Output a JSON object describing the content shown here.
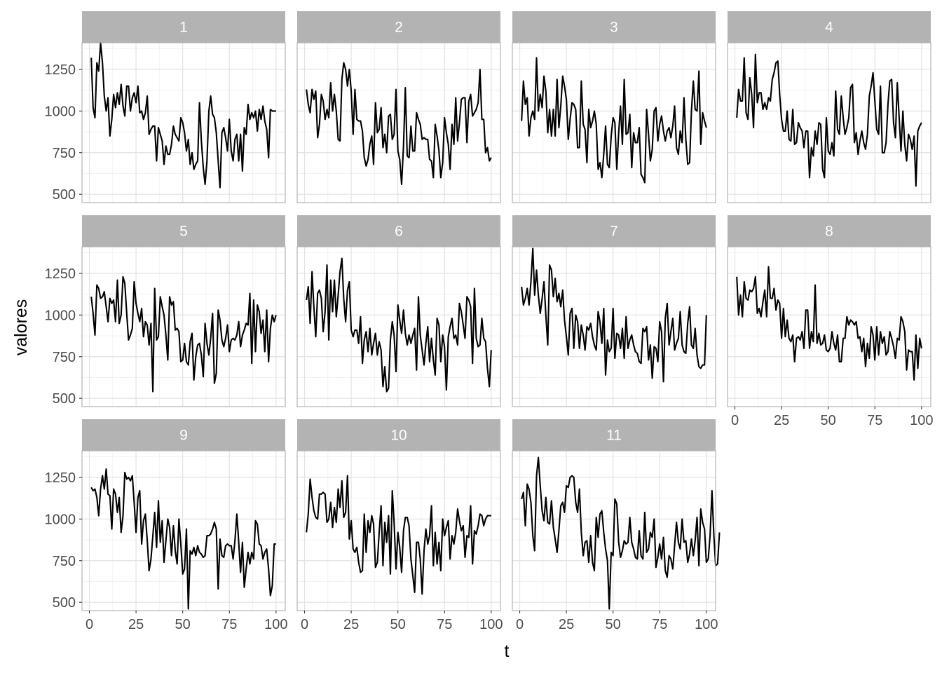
{
  "chart_data": {
    "type": "line",
    "layout": "facet_wrap",
    "ncol": 4,
    "xlabel": "t",
    "ylabel": "valores",
    "xlim": [
      1,
      100
    ],
    "ylim": [
      450,
      1410
    ],
    "x_ticks": [
      0,
      25,
      50,
      75,
      100
    ],
    "y_ticks": [
      500,
      750,
      1000,
      1250
    ],
    "x_tick_labels": [
      "0",
      "25",
      "50",
      "75",
      "100"
    ],
    "y_tick_labels": [
      "500",
      "750",
      "1000",
      "1250"
    ],
    "grid": true,
    "theme": "light",
    "colors": {
      "line": "#000000",
      "strip": "#b3b3b3",
      "strip_text": "#ffffff",
      "grid_major": "#e3e3e3",
      "grid_minor": "#f2f2f2",
      "border": "#b3b3b3"
    },
    "panels": [
      {
        "label": "1",
        "values": [
          1320,
          1020,
          960,
          1290,
          1240,
          1410,
          1290,
          1090,
          1000,
          1080,
          850,
          950,
          1100,
          1020,
          1110,
          1040,
          1160,
          1030,
          970,
          1150,
          1150,
          1000,
          1080,
          1110,
          1050,
          1150,
          990,
          1000,
          950,
          990,
          1090,
          860,
          890,
          910,
          910,
          700,
          900,
          860,
          820,
          680,
          790,
          740,
          740,
          800,
          910,
          860,
          840,
          820,
          960,
          930,
          870,
          760,
          830,
          680,
          750,
          650,
          680,
          700,
          1050,
          820,
          660,
          560,
          700,
          1000,
          1090,
          980,
          960,
          870,
          700,
          540,
          870,
          900,
          840,
          760,
          950,
          760,
          700,
          830,
          860,
          700,
          860,
          640,
          900,
          860,
          1040,
          950,
          990,
          960,
          1000,
          880,
          1010,
          950,
          1030,
          940,
          890,
          720,
          1010,
          1000,
          1000,
          1000
        ]
      },
      {
        "label": "2",
        "values": [
          1130,
          1040,
          990,
          1130,
          1070,
          1120,
          840,
          920,
          1100,
          1060,
          950,
          1010,
          960,
          1170,
          1000,
          1100,
          1000,
          830,
          820,
          1190,
          1290,
          1250,
          1150,
          1250,
          1120,
          860,
          1130,
          950,
          940,
          940,
          880,
          720,
          670,
          710,
          800,
          850,
          680,
          1050,
          870,
          890,
          1020,
          780,
          860,
          750,
          970,
          980,
          830,
          860,
          1130,
          760,
          710,
          560,
          790,
          1140,
          730,
          720,
          910,
          760,
          760,
          990,
          950,
          920,
          830,
          840,
          830,
          830,
          710,
          700,
          600,
          920,
          850,
          760,
          600,
          690,
          960,
          870,
          800,
          650,
          920,
          800,
          1080,
          820,
          930,
          1070,
          1080,
          1080,
          810,
          1060,
          1100,
          970,
          990,
          1010,
          1050,
          1250,
          950,
          950,
          750,
          780,
          700,
          720
        ]
      },
      {
        "label": "3",
        "values": [
          940,
          1180,
          1040,
          1080,
          850,
          960,
          1000,
          950,
          1320,
          1000,
          1100,
          1020,
          1210,
          1120,
          870,
          1010,
          850,
          1010,
          850,
          1190,
          900,
          1030,
          1210,
          1150,
          1070,
          830,
          950,
          1050,
          1040,
          1010,
          780,
          780,
          1180,
          920,
          890,
          690,
          1010,
          900,
          940,
          1000,
          920,
          650,
          690,
          600,
          740,
          910,
          680,
          660,
          850,
          960,
          930,
          650,
          870,
          1030,
          800,
          1190,
          860,
          870,
          980,
          660,
          870,
          810,
          810,
          900,
          620,
          600,
          570,
          1010,
          860,
          700,
          770,
          1000,
          1020,
          820,
          920,
          970,
          880,
          820,
          880,
          900,
          840,
          910,
          1030,
          780,
          740,
          880,
          810,
          1080,
          830,
          680,
          690,
          1000,
          1180,
          1010,
          1000,
          1240,
          800,
          990,
          940,
          900
        ]
      },
      {
        "label": "4",
        "values": [
          960,
          1130,
          1060,
          1060,
          1320,
          990,
          950,
          1200,
          1100,
          900,
          1340,
          1050,
          1110,
          1110,
          1010,
          1050,
          1010,
          1080,
          1060,
          1190,
          1230,
          1290,
          1300,
          1100,
          950,
          880,
          880,
          1000,
          830,
          820,
          1010,
          800,
          810,
          930,
          900,
          880,
          780,
          880,
          880,
          600,
          780,
          730,
          880,
          800,
          930,
          920,
          650,
          600,
          960,
          760,
          740,
          810,
          730,
          1120,
          890,
          860,
          1090,
          960,
          860,
          900,
          960,
          1140,
          1160,
          810,
          870,
          740,
          820,
          880,
          810,
          770,
          860,
          1090,
          1150,
          1230,
          1060,
          890,
          860,
          1150,
          750,
          750,
          810,
          1040,
          1180,
          1190,
          930,
          840,
          1170,
          960,
          760,
          1000,
          800,
          700,
          860,
          830,
          770,
          850,
          550,
          880,
          910,
          930
        ]
      },
      {
        "label": "5",
        "values": [
          1110,
          1010,
          880,
          1180,
          1160,
          1100,
          1110,
          1140,
          1050,
          960,
          1100,
          1070,
          1090,
          960,
          1210,
          950,
          1000,
          1230,
          1190,
          1010,
          850,
          880,
          920,
          1200,
          1070,
          1010,
          960,
          1040,
          870,
          960,
          940,
          820,
          950,
          540,
          1160,
          850,
          870,
          1110,
          1050,
          1000,
          880,
          730,
          1110,
          1060,
          1080,
          910,
          920,
          900,
          720,
          730,
          830,
          720,
          700,
          840,
          890,
          610,
          750,
          820,
          830,
          760,
          630,
          950,
          830,
          760,
          860,
          1010,
          590,
          650,
          1030,
          970,
          850,
          810,
          860,
          940,
          780,
          850,
          860,
          850,
          880,
          960,
          810,
          880,
          910,
          950,
          940,
          1130,
          710,
          1090,
          780,
          1060,
          1020,
          890,
          970,
          780,
          1030,
          720,
          920,
          1000,
          960,
          1000
        ]
      },
      {
        "label": "6",
        "values": [
          1090,
          1170,
          950,
          1260,
          1050,
          870,
          1130,
          1150,
          1100,
          900,
          1020,
          1300,
          850,
          1210,
          1020,
          1210,
          990,
          1120,
          1260,
          1340,
          1100,
          960,
          1150,
          1200,
          910,
          870,
          910,
          910,
          830,
          990,
          710,
          850,
          900,
          780,
          920,
          760,
          830,
          890,
          760,
          840,
          790,
          570,
          690,
          540,
          560,
          850,
          960,
          880,
          660,
          1060,
          970,
          890,
          1030,
          890,
          820,
          880,
          830,
          880,
          920,
          670,
          1110,
          880,
          790,
          700,
          830,
          930,
          720,
          860,
          730,
          640,
          980,
          940,
          720,
          880,
          810,
          550,
          870,
          930,
          980,
          860,
          880,
          820,
          1070,
          1020,
          940,
          860,
          1110,
          1090,
          1050,
          710,
          1160,
          860,
          810,
          820,
          980,
          860,
          840,
          680,
          570,
          790
        ]
      },
      {
        "label": "7",
        "values": [
          1170,
          1060,
          1100,
          1160,
          1060,
          1200,
          1400,
          1120,
          1270,
          1120,
          1010,
          1100,
          1200,
          1000,
          820,
          1300,
          1270,
          1110,
          1220,
          1080,
          1130,
          1050,
          1150,
          970,
          870,
          760,
          1010,
          1040,
          800,
          1000,
          960,
          800,
          940,
          880,
          790,
          930,
          910,
          950,
          870,
          820,
          790,
          1020,
          960,
          830,
          1040,
          640,
          850,
          780,
          800,
          1040,
          740,
          890,
          880,
          800,
          920,
          740,
          990,
          800,
          850,
          880,
          820,
          780,
          770,
          720,
          710,
          920,
          900,
          930,
          730,
          820,
          620,
          810,
          800,
          720,
          960,
          900,
          600,
          980,
          1070,
          820,
          900,
          980,
          790,
          830,
          860,
          1020,
          820,
          780,
          770,
          950,
          1050,
          820,
          800,
          920,
          760,
          690,
          680,
          700,
          700,
          1000
        ]
      },
      {
        "label": "8",
        "values": [
          1230,
          1000,
          1120,
          990,
          1200,
          1100,
          1090,
          1150,
          1140,
          1160,
          1230,
          1010,
          1040,
          990,
          1080,
          1150,
          990,
          1290,
          1100,
          1100,
          1160,
          1030,
          1090,
          1070,
          860,
          1040,
          870,
          970,
          860,
          840,
          880,
          720,
          860,
          870,
          850,
          900,
          800,
          1030,
          1030,
          800,
          900,
          840,
          1180,
          830,
          890,
          820,
          830,
          880,
          790,
          780,
          800,
          900,
          830,
          790,
          880,
          720,
          720,
          860,
          860,
          990,
          940,
          970,
          960,
          940,
          960,
          860,
          870,
          780,
          860,
          690,
          830,
          740,
          930,
          880,
          730,
          930,
          760,
          900,
          830,
          870,
          760,
          780,
          900,
          860,
          810,
          740,
          860,
          850,
          990,
          960,
          900,
          670,
          790,
          780,
          780,
          610,
          880,
          680,
          860,
          800
        ]
      },
      {
        "label": "9",
        "values": [
          1190,
          1170,
          1180,
          1130,
          1020,
          1180,
          1260,
          1180,
          1300,
          1150,
          1140,
          940,
          1180,
          1150,
          1040,
          1130,
          920,
          1020,
          1280,
          1240,
          1250,
          1230,
          1260,
          1100,
          920,
          1130,
          1170,
          850,
          990,
          1030,
          870,
          690,
          760,
          900,
          1040,
          830,
          1110,
          860,
          990,
          740,
          870,
          1000,
          950,
          780,
          960,
          810,
          730,
          1000,
          850,
          670,
          700,
          940,
          460,
          810,
          790,
          830,
          780,
          840,
          800,
          790,
          770,
          780,
          900,
          900,
          910,
          940,
          980,
          940,
          580,
          880,
          780,
          770,
          840,
          850,
          840,
          840,
          760,
          870,
          1030,
          860,
          680,
          860,
          590,
          700,
          800,
          730,
          800,
          760,
          990,
          970,
          850,
          840,
          760,
          800,
          820,
          700,
          540,
          600,
          850,
          850
        ]
      },
      {
        "label": "10",
        "values": [
          920,
          1030,
          1240,
          1130,
          1050,
          1010,
          1000,
          1150,
          1150,
          1160,
          1150,
          980,
          1000,
          1100,
          950,
          1070,
          980,
          1180,
          1070,
          1230,
          1010,
          1040,
          1260,
          880,
          990,
          820,
          800,
          830,
          740,
          680,
          690,
          1030,
          800,
          990,
          920,
          1020,
          970,
          710,
          740,
          920,
          1080,
          720,
          980,
          860,
          1020,
          670,
          1170,
          980,
          700,
          920,
          830,
          680,
          930,
          1010,
          1010,
          960,
          760,
          660,
          560,
          860,
          860,
          760,
          550,
          810,
          940,
          850,
          900,
          1080,
          720,
          920,
          730,
          860,
          690,
          1000,
          900,
          950,
          990,
          760,
          900,
          850,
          920,
          1060,
          990,
          930,
          960,
          770,
          900,
          890,
          1080,
          730,
          930,
          910,
          960,
          1030,
          1020,
          960,
          1000,
          1020,
          1020,
          1020
        ]
      },
      {
        "label": "11",
        "values": [
          1120,
          1160,
          960,
          1210,
          1180,
          1100,
          900,
          810,
          1260,
          1370,
          1200,
          1050,
          990,
          1130,
          980,
          970,
          1110,
          950,
          880,
          800,
          930,
          1080,
          1100,
          1040,
          1200,
          1190,
          1250,
          1260,
          1250,
          1100,
          1040,
          1180,
          920,
          780,
          860,
          870,
          740,
          900,
          740,
          690,
          1010,
          890,
          1030,
          1050,
          920,
          820,
          750,
          460,
          800,
          780,
          1120,
          1090,
          860,
          770,
          810,
          870,
          850,
          860,
          1010,
          860,
          820,
          770,
          760,
          930,
          780,
          760,
          1040,
          800,
          820,
          920,
          890,
          1000,
          710,
          770,
          850,
          760,
          890,
          690,
          650,
          780,
          760,
          700,
          840,
          980,
          860,
          820,
          1000,
          860,
          870,
          740,
          790,
          880,
          780,
          870,
          1010,
          720,
          1060,
          980,
          940,
          740,
          760,
          900,
          1170,
          900,
          720,
          730,
          920
        ]
      }
    ]
  }
}
